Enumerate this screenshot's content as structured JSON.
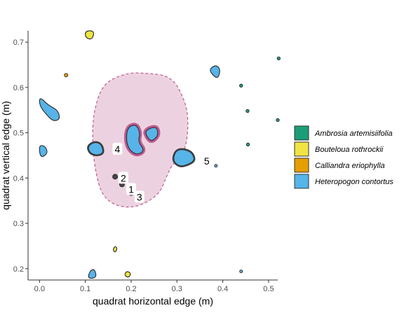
{
  "chart_data": {
    "type": "scatter",
    "xlabel": "quadrat horizontal edge (m)",
    "ylabel": "quadrat vertical edge (m)",
    "xlim": [
      -0.025,
      0.52
    ],
    "ylim": [
      0.175,
      0.725
    ],
    "x_ticks": [
      0.0,
      0.1,
      0.2,
      0.3,
      0.4,
      0.5
    ],
    "y_ticks": [
      0.2,
      0.3,
      0.4,
      0.5,
      0.6,
      0.7
    ],
    "x_tick_labels": [
      "0.0",
      "0.1",
      "0.2",
      "0.3",
      "0.4",
      "0.5"
    ],
    "y_tick_labels": [
      "0.2",
      "0.3",
      "0.4",
      "0.5",
      "0.6",
      "0.7"
    ],
    "grid": false,
    "legend_position": "right",
    "legend": [
      {
        "name": "Ambrosia artemisiifolia",
        "color": "#1b9e77"
      },
      {
        "name": "Bouteloua rothrockii",
        "color": "#f0e442"
      },
      {
        "name": "Calliandra eriophylla",
        "color": "#e69f00"
      },
      {
        "name": "Heteropogon contortus",
        "color": "#56b4e9"
      }
    ],
    "neighborhood": [
      [
        0.23,
        0.632
      ],
      [
        0.29,
        0.625
      ],
      [
        0.32,
        0.565
      ],
      [
        0.325,
        0.52
      ],
      [
        0.32,
        0.47
      ],
      [
        0.305,
        0.44
      ],
      [
        0.29,
        0.43
      ],
      [
        0.28,
        0.41
      ],
      [
        0.26,
        0.36
      ],
      [
        0.2,
        0.33
      ],
      [
        0.14,
        0.35
      ],
      [
        0.12,
        0.42
      ],
      [
        0.115,
        0.5
      ],
      [
        0.12,
        0.555
      ],
      [
        0.14,
        0.61
      ],
      [
        0.19,
        0.632
      ]
    ],
    "plants": [
      {
        "species": "Heteropogon contortus",
        "points": [
          [
            0.0,
            0.58
          ],
          [
            0.02,
            0.56
          ],
          [
            0.04,
            0.55
          ],
          [
            0.045,
            0.53
          ],
          [
            0.03,
            0.525
          ],
          [
            0.015,
            0.54
          ],
          [
            0.0,
            0.56
          ]
        ],
        "focal": null
      },
      {
        "species": "Heteropogon contortus",
        "points": [
          [
            0.0,
            0.473
          ],
          [
            0.013,
            0.47
          ],
          [
            0.018,
            0.455
          ],
          [
            0.005,
            0.445
          ],
          [
            0.0,
            0.455
          ]
        ],
        "focal": null
      },
      {
        "species": "Heteropogon contortus",
        "points": [
          [
            0.38,
            0.625
          ],
          [
            0.37,
            0.64
          ],
          [
            0.385,
            0.65
          ],
          [
            0.395,
            0.64
          ],
          [
            0.39,
            0.62
          ]
        ],
        "focal": null
      },
      {
        "species": "Heteropogon contortus",
        "points": [
          [
            0.11,
            0.195
          ],
          [
            0.12,
            0.2
          ],
          [
            0.125,
            0.18
          ],
          [
            0.105,
            0.178
          ]
        ],
        "focal": null
      },
      {
        "species": "Heteropogon contortus",
        "points": [
          [
            0.19,
            0.51
          ],
          [
            0.21,
            0.52
          ],
          [
            0.22,
            0.5
          ],
          [
            0.215,
            0.48
          ],
          [
            0.23,
            0.46
          ],
          [
            0.21,
            0.45
          ],
          [
            0.19,
            0.47
          ]
        ],
        "focal": 1
      },
      {
        "species": "Heteropogon contortus",
        "points": [
          [
            0.23,
            0.505
          ],
          [
            0.255,
            0.515
          ],
          [
            0.26,
            0.495
          ],
          [
            0.245,
            0.48
          ],
          [
            0.235,
            0.49
          ]
        ],
        "focal": 1
      },
      {
        "species": "Heteropogon contortus",
        "points": [
          [
            0.105,
            0.47
          ],
          [
            0.12,
            0.48
          ],
          [
            0.135,
            0.475
          ],
          [
            0.14,
            0.455
          ],
          [
            0.125,
            0.45
          ],
          [
            0.11,
            0.455
          ]
        ],
        "focal": 4
      },
      {
        "species": "Heteropogon contortus",
        "points": [
          [
            0.3,
            0.465
          ],
          [
            0.33,
            0.46
          ],
          [
            0.34,
            0.44
          ],
          [
            0.325,
            0.43
          ],
          [
            0.305,
            0.425
          ],
          [
            0.29,
            0.44
          ]
        ],
        "focal": 5
      },
      {
        "species": "Bouteloua rothrockii",
        "points": [
          [
            0.1,
            0.725
          ],
          [
            0.12,
            0.725
          ],
          [
            0.115,
            0.705
          ],
          [
            0.1,
            0.71
          ]
        ],
        "focal": null
      },
      {
        "species": "Bouteloua rothrockii",
        "points": [
          [
            0.165,
            0.25
          ],
          [
            0.17,
            0.245
          ],
          [
            0.165,
            0.235
          ],
          [
            0.16,
            0.242
          ]
        ],
        "focal": null
      },
      {
        "species": "Bouteloua rothrockii",
        "points": [
          [
            0.19,
            0.195
          ],
          [
            0.2,
            0.19
          ],
          [
            0.195,
            0.18
          ],
          [
            0.185,
            0.185
          ]
        ],
        "focal": null
      }
    ],
    "points": [
      {
        "species": "Calliandra eriophylla",
        "x": 0.058,
        "y": 0.627,
        "size": 2.5,
        "focal": null
      },
      {
        "species": "Ambrosia artemisiifolia",
        "x": 0.44,
        "y": 0.604,
        "size": 2.2,
        "focal": null
      },
      {
        "species": "Ambrosia artemisiifolia",
        "x": 0.454,
        "y": 0.548,
        "size": 2.2,
        "focal": null
      },
      {
        "species": "Ambrosia artemisiifolia",
        "x": 0.455,
        "y": 0.474,
        "size": 2.2,
        "focal": null
      },
      {
        "species": "Ambrosia artemisiifolia",
        "x": 0.522,
        "y": 0.664,
        "size": 2.2,
        "focal": null
      },
      {
        "species": "Ambrosia artemisiifolia",
        "x": 0.52,
        "y": 0.528,
        "size": 2.2,
        "focal": null
      },
      {
        "species": "Heteropogon contortus",
        "x": 0.44,
        "y": 0.194,
        "size": 2.0,
        "focal": null
      },
      {
        "species": "Heteropogon contortus",
        "x": 0.385,
        "y": 0.427,
        "size": 2.0,
        "focal": null
      },
      {
        "species": "Heteropogon contortus",
        "x": 0.165,
        "y": 0.403,
        "size": 3.5,
        "focal": 2
      },
      {
        "species": "Heteropogon contortus",
        "x": 0.18,
        "y": 0.386,
        "size": 3.5,
        "focal": 1
      },
      {
        "species": "Heteropogon contortus",
        "x": 0.2,
        "y": 0.367,
        "size": 3.5,
        "focal": 3
      }
    ],
    "focal_labels": [
      {
        "id": 1,
        "text": "1",
        "x": 0.2,
        "y": 0.375
      },
      {
        "id": 2,
        "text": "2",
        "x": 0.183,
        "y": 0.4
      },
      {
        "id": 3,
        "text": "3",
        "x": 0.218,
        "y": 0.358
      },
      {
        "id": 4,
        "text": "4",
        "x": 0.17,
        "y": 0.464
      },
      {
        "id": 5,
        "text": "5",
        "x": 0.365,
        "y": 0.438
      }
    ]
  }
}
